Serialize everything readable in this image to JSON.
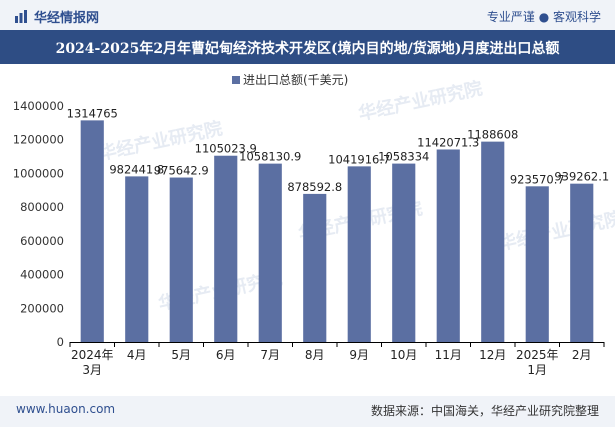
{
  "header": {
    "brand": "华经情报网",
    "tagline": "专业严谨 ● 客观科学"
  },
  "footer": {
    "site": "www.huaon.com",
    "source": "数据来源：中国海关，华经产业研究院整理"
  },
  "watermark": "华经产业研究院",
  "colors": {
    "bar": "#5b6fa2",
    "title_bg": "#2e4d84",
    "brand": "#2f4f8f"
  },
  "chart_data": {
    "type": "bar",
    "title": "2024-2025年2月年曹妃甸经济技术开发区(境内目的地/货源地)月度进出口总额",
    "categories": [
      "2024年3月",
      "4月",
      "5月",
      "6月",
      "7月",
      "8月",
      "9月",
      "10月",
      "11月",
      "12月",
      "2025年1月",
      "2月"
    ],
    "series": [
      {
        "name": "进出口总额(千美元)",
        "values": [
          1314765,
          982441.8,
          975642.9,
          1105023.9,
          1058130.9,
          878592.8,
          1041916.7,
          1058334,
          1142071.3,
          1188608,
          923570.7,
          939262.1
        ]
      }
    ],
    "value_labels": [
      "1314765",
      "982441.8",
      "975642.9",
      "1105023.9",
      "1058130.9",
      "878592.8",
      "1041916.7",
      "1058334",
      "1142071.3",
      "1188608",
      "923570.7",
      "939262.1"
    ],
    "y_ticks": [
      "0",
      "200000",
      "400000",
      "600000",
      "800000",
      "1000000",
      "1200000",
      "1400000"
    ],
    "ylim": [
      0,
      1400000
    ],
    "legend_position": "top-center",
    "grid": false
  }
}
